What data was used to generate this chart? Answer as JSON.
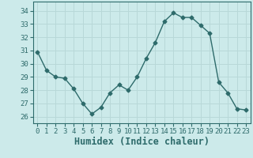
{
  "x": [
    0,
    1,
    2,
    3,
    4,
    5,
    6,
    7,
    8,
    9,
    10,
    11,
    12,
    13,
    14,
    15,
    16,
    17,
    18,
    19,
    20,
    21,
    22,
    23
  ],
  "y": [
    30.9,
    29.5,
    29.0,
    28.9,
    28.1,
    27.0,
    26.2,
    26.7,
    27.8,
    28.4,
    28.0,
    29.0,
    30.4,
    31.6,
    33.2,
    33.85,
    33.5,
    33.5,
    32.9,
    32.3,
    28.6,
    27.8,
    26.6,
    26.5
  ],
  "line_color": "#2e6b6b",
  "marker": "D",
  "marker_size": 2.5,
  "bg_color": "#cceaea",
  "grid_color": "#b8d8d8",
  "xlabel": "Humidex (Indice chaleur)",
  "ylabel": "",
  "xlim": [
    -0.5,
    23.5
  ],
  "ylim": [
    25.5,
    34.7
  ],
  "yticks": [
    26,
    27,
    28,
    29,
    30,
    31,
    32,
    33,
    34
  ],
  "xticks": [
    0,
    1,
    2,
    3,
    4,
    5,
    6,
    7,
    8,
    9,
    10,
    11,
    12,
    13,
    14,
    15,
    16,
    17,
    18,
    19,
    20,
    21,
    22,
    23
  ],
  "spine_color": "#2e6b6b",
  "tick_color": "#2e6b6b",
  "label_color": "#2e6b6b",
  "font_size": 6.5,
  "xlabel_fontsize": 8.5
}
